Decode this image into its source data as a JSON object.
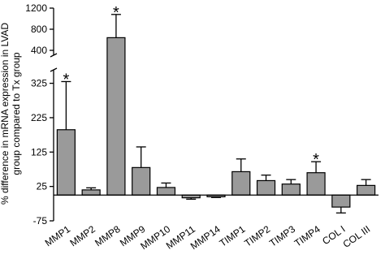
{
  "chart_data": {
    "type": "bar",
    "ylabel": [
      "% difference in mRNA expression in LVAD",
      "group compared to Tx group"
    ],
    "categories": [
      "MMP1",
      "MMP2",
      "MMP8",
      "MMP9",
      "MMP10",
      "MMP11",
      "MMP14",
      "TIMP1",
      "TIMP2",
      "TIMP3",
      "TIMP4",
      "COL I",
      "COL III"
    ],
    "values": [
      190,
      15,
      640,
      80,
      22,
      -8,
      -5,
      68,
      42,
      32,
      65,
      -35,
      28
    ],
    "errors": [
      140,
      6,
      440,
      60,
      13,
      4,
      2,
      37,
      16,
      13,
      32,
      17,
      17
    ],
    "color": "#9a9a9a",
    "ylim": [
      -75,
      1200
    ],
    "ybreak": [
      350,
      400
    ],
    "yticks": [
      -75,
      25,
      125,
      225,
      325,
      400,
      800,
      1200
    ],
    "annotations": [
      {
        "text": "*",
        "category": "MMP1"
      },
      {
        "text": "*",
        "category": "MMP8"
      },
      {
        "text": "*",
        "category": "TIMP4"
      }
    ]
  }
}
